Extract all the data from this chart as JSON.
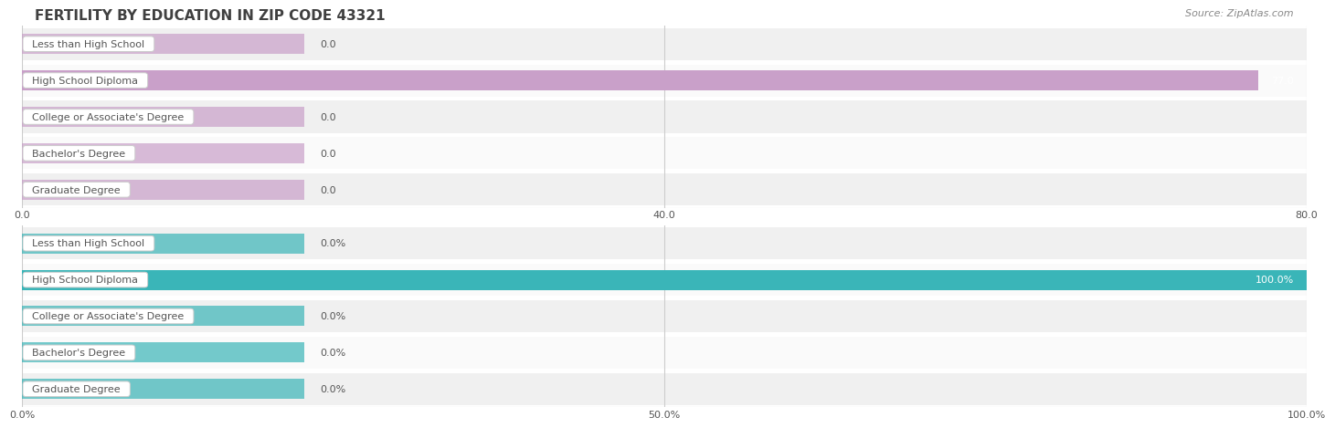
{
  "title": "FERTILITY BY EDUCATION IN ZIP CODE 43321",
  "source": "Source: ZipAtlas.com",
  "categories": [
    "Less than High School",
    "High School Diploma",
    "College or Associate's Degree",
    "Bachelor's Degree",
    "Graduate Degree"
  ],
  "values_count": [
    0.0,
    77.0,
    0.0,
    0.0,
    0.0
  ],
  "values_pct": [
    0.0,
    100.0,
    0.0,
    0.0,
    0.0
  ],
  "count_xlim_max": 80.0,
  "count_xticks": [
    0.0,
    40.0,
    80.0
  ],
  "count_xticklabels": [
    "0.0",
    "40.0",
    "80.0"
  ],
  "pct_xlim_max": 100.0,
  "pct_xticks": [
    0.0,
    50.0,
    100.0
  ],
  "pct_xticklabels": [
    "0.0%",
    "50.0%",
    "100.0%"
  ],
  "bar_color_purple": "#c9a0c9",
  "bar_color_teal": "#3ab5b8",
  "row_bg_even": "#f0f0f0",
  "row_bg_odd": "#fafafa",
  "gap_color": "#ffffff",
  "label_bg_color": "#ffffff",
  "label_border_color": "#cccccc",
  "title_color": "#404040",
  "source_color": "#888888",
  "grid_color": "#cccccc",
  "text_color": "#555555",
  "value_color_inside": "#ffffff",
  "value_color_outside": "#555555",
  "title_fontsize": 11,
  "source_fontsize": 8,
  "bar_label_fontsize": 8,
  "value_fontsize": 8,
  "tick_fontsize": 8
}
